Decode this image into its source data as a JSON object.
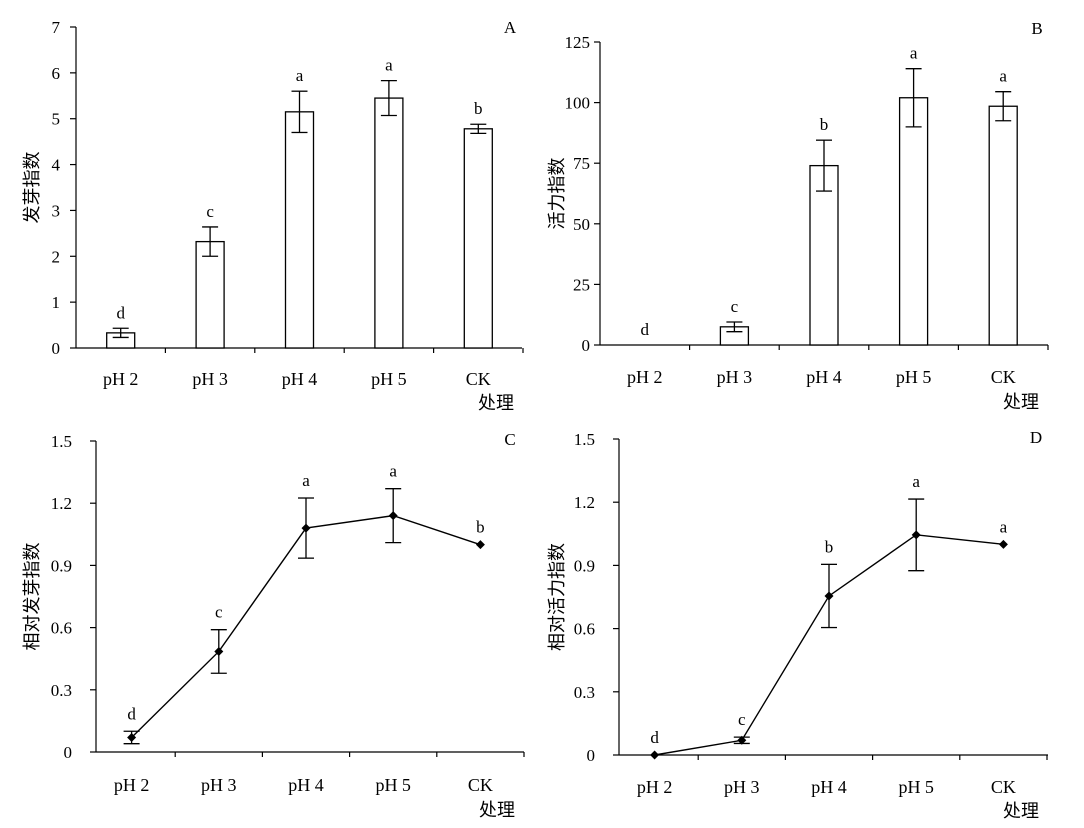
{
  "figure": {
    "chart_data": [
      {
        "type": "bar",
        "panel": "A",
        "categories": [
          "pH 2",
          "pH 3",
          "pH 4",
          "pH 5",
          "CK"
        ],
        "values": [
          0.33,
          2.32,
          5.15,
          5.45,
          4.78
        ],
        "errors": [
          0.1,
          0.32,
          0.45,
          0.38,
          0.1
        ],
        "letters": [
          "d",
          "c",
          "a",
          "a",
          "b"
        ],
        "ylabel": "发芽指数",
        "xlabel": "处理",
        "ylim": [
          0,
          7
        ],
        "yticks": [
          0,
          1,
          2,
          3,
          4,
          5,
          6,
          7
        ],
        "ytick_labels": [
          "0",
          "1",
          "2",
          "3",
          "4",
          "5",
          "6",
          "7"
        ]
      },
      {
        "type": "bar",
        "panel": "B",
        "categories": [
          "pH 2",
          "pH 3",
          "pH 4",
          "pH 5",
          "CK"
        ],
        "values": [
          0,
          7.5,
          74,
          102,
          98.5
        ],
        "errors": [
          0,
          2,
          10.5,
          12,
          6
        ],
        "letters": [
          "d",
          "c",
          "b",
          "a",
          "a"
        ],
        "ylabel": "活力指数",
        "xlabel": "处理",
        "ylim": [
          0,
          125
        ],
        "yticks": [
          0,
          25,
          50,
          75,
          100,
          125
        ],
        "ytick_labels": [
          "0",
          "25",
          "50",
          "75",
          "100",
          "125"
        ]
      },
      {
        "type": "line",
        "panel": "C",
        "categories": [
          "pH 2",
          "pH 3",
          "pH 4",
          "pH 5",
          "CK"
        ],
        "values": [
          0.07,
          0.485,
          1.08,
          1.14,
          1.0
        ],
        "errors": [
          0.03,
          0.105,
          0.145,
          0.13,
          0
        ],
        "letters": [
          "d",
          "c",
          "a",
          "a",
          "b"
        ],
        "ylabel": "相对发芽指数",
        "xlabel": "处理",
        "ylim": [
          0,
          1.5
        ],
        "yticks": [
          0,
          0.3,
          0.6,
          0.9,
          1.2,
          1.5
        ],
        "ytick_labels": [
          "0",
          "0.3",
          "0.6",
          "0.9",
          "1.2",
          "1.5"
        ]
      },
      {
        "type": "line",
        "panel": "D",
        "categories": [
          "pH 2",
          "pH 3",
          "pH 4",
          "pH 5",
          "CK"
        ],
        "values": [
          0,
          0.07,
          0.755,
          1.045,
          1.0
        ],
        "errors": [
          0,
          0.015,
          0.15,
          0.17,
          0
        ],
        "letters": [
          "d",
          "c",
          "b",
          "a",
          "a"
        ],
        "ylabel": "相对活力指数",
        "xlabel": "处理",
        "ylim": [
          0,
          1.5
        ],
        "yticks": [
          0,
          0.3,
          0.6,
          0.9,
          1.2,
          1.5
        ],
        "ytick_labels": [
          "0",
          "0.3",
          "0.6",
          "0.9",
          "1.2",
          "1.5"
        ]
      }
    ]
  }
}
